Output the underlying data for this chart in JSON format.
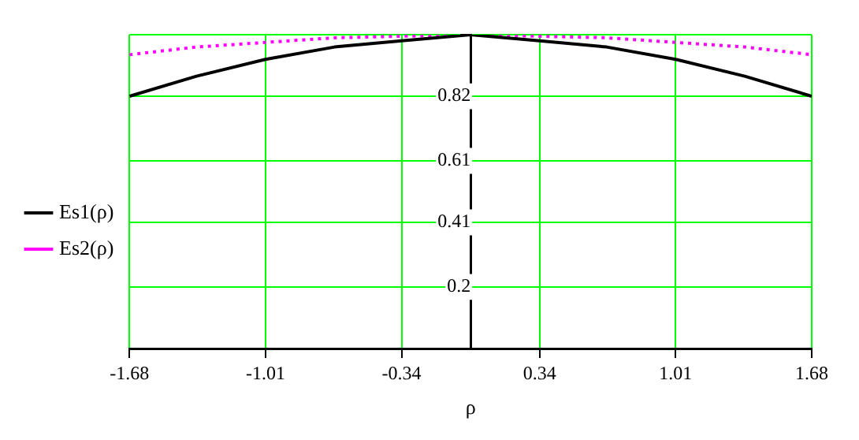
{
  "chart_data": {
    "type": "line",
    "xlabel": "ρ",
    "x": [
      -1.68,
      -1.35,
      -1.01,
      -0.67,
      -0.34,
      0,
      0.34,
      0.67,
      1.01,
      1.35,
      1.68
    ],
    "series": [
      {
        "name": "Es1(ρ)",
        "color": "#000000",
        "line_style": "solid",
        "values": [
          0.82,
          0.885,
          0.94,
          0.98,
          1.0,
          1.02,
          1.0,
          0.98,
          0.94,
          0.885,
          0.82
        ]
      },
      {
        "name": "Es2(ρ)",
        "color": "#ff00ff",
        "line_style": "dotted",
        "values": [
          0.955,
          0.98,
          0.995,
          1.01,
          1.015,
          1.02,
          1.015,
          1.01,
          0.995,
          0.98,
          0.955
        ]
      }
    ],
    "xlim": [
      -1.68,
      1.68
    ],
    "xticks": [
      -1.68,
      -1.01,
      -0.34,
      0.34,
      1.01,
      1.68
    ],
    "ylim": [
      0,
      1.02
    ],
    "yticks": [
      0.2,
      0.41,
      0.61,
      0.82,
      {
        "value": 1.02,
        "label": null
      }
    ],
    "grid": true,
    "legend": "left",
    "marker": "none"
  }
}
